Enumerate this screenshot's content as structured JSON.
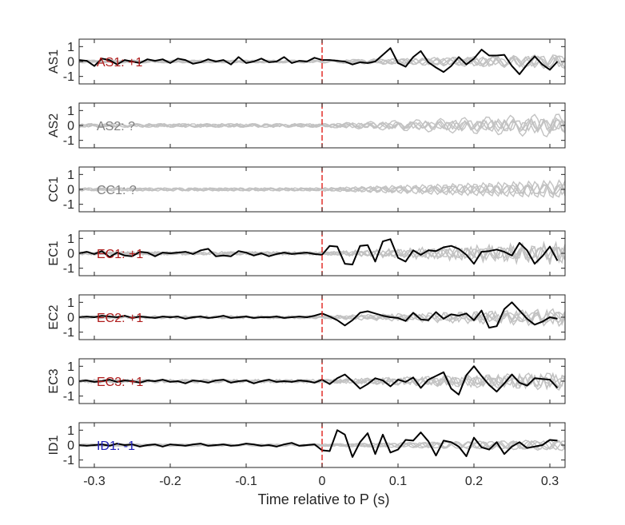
{
  "chart_data": {
    "type": "line",
    "xlabel": "Time relative to P (s)",
    "xlim": [
      -0.32,
      0.32
    ],
    "x_ticks": [
      -0.3,
      -0.2,
      -0.1,
      0,
      0.1,
      0.2,
      0.3
    ],
    "x_tick_labels": [
      "-0.3",
      "-0.2",
      "-0.1",
      "0",
      "0.1",
      "0.2",
      "0.3"
    ],
    "ylim": [
      -1.5,
      1.5
    ],
    "y_ticks": [
      -1,
      0,
      1
    ],
    "y_tick_labels": [
      "-1",
      "0",
      "1"
    ],
    "marker_x": 0,
    "colors": {
      "highlight": "#000000",
      "background": "#c2c2c2",
      "marker": "#e0201b",
      "positive": "#b01c1c",
      "negative": "#1f1fb5",
      "unknown": "#7f7f7f"
    },
    "panels": [
      {
        "ylabel": "AS1",
        "label": "AS1: +1",
        "polarity": "positive",
        "x": [
          -0.32,
          -0.31,
          -0.3,
          -0.29,
          -0.28,
          -0.27,
          -0.26,
          -0.25,
          -0.24,
          -0.23,
          -0.22,
          -0.21,
          -0.2,
          -0.19,
          -0.18,
          -0.17,
          -0.16,
          -0.15,
          -0.14,
          -0.13,
          -0.12,
          -0.11,
          -0.1,
          -0.09,
          -0.08,
          -0.07,
          -0.06,
          -0.05,
          -0.04,
          -0.03,
          -0.02,
          -0.01,
          0,
          0.01,
          0.02,
          0.03,
          0.04,
          0.05,
          0.06,
          0.07,
          0.08,
          0.09,
          0.1,
          0.11,
          0.12,
          0.13,
          0.14,
          0.15,
          0.16,
          0.17,
          0.18,
          0.19,
          0.2,
          0.21,
          0.22,
          0.23,
          0.24,
          0.25,
          0.26,
          0.27,
          0.28,
          0.29,
          0.3,
          0.31
        ],
        "y": [
          0.1,
          0.05,
          -0.3,
          0.2,
          0.1,
          -0.2,
          0.1,
          0.0,
          -0.1,
          0.15,
          0.05,
          0.15,
          -0.1,
          0.2,
          0.1,
          -0.15,
          -0.05,
          0.15,
          0.0,
          0.1,
          -0.2,
          0.3,
          -0.1,
          0.0,
          0.2,
          -0.05,
          0.0,
          0.3,
          -0.1,
          0.05,
          0.0,
          0.25,
          0.1,
          0.1,
          0.05,
          0.0,
          -0.2,
          -0.05,
          -0.1,
          0.0,
          0.45,
          0.9,
          -0.1,
          -0.35,
          0.3,
          0.7,
          -0.05,
          -0.4,
          -0.7,
          -0.3,
          0.3,
          -0.2,
          0.2,
          0.8,
          0.4,
          0.4,
          0.45,
          -0.3,
          -0.85,
          -0.2,
          0.35,
          -0.2,
          -0.55,
          0.0
        ]
      },
      {
        "ylabel": "AS2",
        "label": "AS2: ?",
        "polarity": "unknown",
        "x": [],
        "y": []
      },
      {
        "ylabel": "CC1",
        "label": "CC1: ?",
        "polarity": "unknown",
        "x": [],
        "y": []
      },
      {
        "ylabel": "EC1",
        "label": "EC1: +1",
        "polarity": "positive",
        "x": [
          -0.32,
          -0.31,
          -0.3,
          -0.29,
          -0.28,
          -0.27,
          -0.26,
          -0.25,
          -0.24,
          -0.23,
          -0.22,
          -0.21,
          -0.2,
          -0.19,
          -0.18,
          -0.17,
          -0.16,
          -0.15,
          -0.14,
          -0.13,
          -0.12,
          -0.11,
          -0.1,
          -0.09,
          -0.08,
          -0.07,
          -0.06,
          -0.05,
          -0.04,
          -0.03,
          -0.02,
          -0.01,
          0,
          0.01,
          0.02,
          0.03,
          0.04,
          0.05,
          0.06,
          0.07,
          0.08,
          0.09,
          0.1,
          0.11,
          0.12,
          0.13,
          0.14,
          0.15,
          0.16,
          0.17,
          0.18,
          0.19,
          0.2,
          0.21,
          0.22,
          0.23,
          0.24,
          0.25,
          0.26,
          0.27,
          0.28,
          0.29,
          0.3,
          0.31
        ],
        "y": [
          0.0,
          0.1,
          -0.05,
          0.15,
          -0.25,
          0.05,
          -0.15,
          -0.2,
          0.1,
          0.05,
          -0.2,
          0.05,
          0.0,
          0.05,
          0.1,
          -0.05,
          0.2,
          0.3,
          -0.2,
          -0.15,
          -0.2,
          0.15,
          0.05,
          -0.15,
          0.0,
          -0.2,
          -0.05,
          0.05,
          -0.05,
          0.0,
          0.05,
          -0.05,
          -0.1,
          0.5,
          0.45,
          -0.7,
          -0.75,
          0.5,
          0.55,
          -0.55,
          0.8,
          0.95,
          -0.3,
          -0.55,
          0.2,
          -0.1,
          0.2,
          0.15,
          0.4,
          0.5,
          0.3,
          -0.1,
          -0.7,
          0.1,
          0.15,
          0.25,
          0.1,
          -0.15,
          0.7,
          0.2,
          -0.7,
          -0.2,
          0.45,
          -0.5
        ]
      },
      {
        "ylabel": "EC2",
        "label": "EC2: +1",
        "polarity": "positive",
        "x": [
          -0.32,
          -0.31,
          -0.3,
          -0.29,
          -0.28,
          -0.27,
          -0.26,
          -0.25,
          -0.24,
          -0.23,
          -0.22,
          -0.21,
          -0.2,
          -0.19,
          -0.18,
          -0.17,
          -0.16,
          -0.15,
          -0.14,
          -0.13,
          -0.12,
          -0.11,
          -0.1,
          -0.09,
          -0.08,
          -0.07,
          -0.06,
          -0.05,
          -0.04,
          -0.03,
          -0.02,
          -0.01,
          0,
          0.01,
          0.02,
          0.03,
          0.04,
          0.05,
          0.06,
          0.07,
          0.08,
          0.09,
          0.1,
          0.11,
          0.12,
          0.13,
          0.14,
          0.15,
          0.16,
          0.17,
          0.18,
          0.19,
          0.2,
          0.21,
          0.22,
          0.23,
          0.24,
          0.25,
          0.26,
          0.27,
          0.28,
          0.29,
          0.3,
          0.31
        ],
        "y": [
          0.0,
          0.05,
          0.0,
          0.1,
          0.05,
          0.0,
          0.1,
          -0.05,
          0.05,
          0.0,
          -0.05,
          0.05,
          0.0,
          0.05,
          -0.1,
          0.0,
          0.05,
          -0.05,
          0.0,
          0.1,
          -0.05,
          0.0,
          0.05,
          -0.05,
          0.0,
          0.0,
          0.05,
          -0.05,
          0.0,
          0.05,
          0.0,
          0.1,
          0.25,
          0.05,
          -0.2,
          -0.55,
          -0.2,
          0.3,
          0.4,
          0.25,
          0.1,
          0.0,
          -0.05,
          -0.25,
          0.3,
          -0.15,
          -0.2,
          0.35,
          -0.1,
          0.2,
          0.1,
          0.25,
          -0.2,
          0.45,
          -0.7,
          -0.6,
          0.55,
          1.0,
          0.45,
          -0.1,
          -0.5,
          -0.3,
          0.0,
          -0.1
        ]
      },
      {
        "ylabel": "EC3",
        "label": "EC3: +1",
        "polarity": "positive",
        "x": [
          -0.32,
          -0.31,
          -0.3,
          -0.29,
          -0.28,
          -0.27,
          -0.26,
          -0.25,
          -0.24,
          -0.23,
          -0.22,
          -0.21,
          -0.2,
          -0.19,
          -0.18,
          -0.17,
          -0.16,
          -0.15,
          -0.14,
          -0.13,
          -0.12,
          -0.11,
          -0.1,
          -0.09,
          -0.08,
          -0.07,
          -0.06,
          -0.05,
          -0.04,
          -0.03,
          -0.02,
          -0.01,
          0,
          0.01,
          0.02,
          0.03,
          0.04,
          0.05,
          0.06,
          0.07,
          0.08,
          0.09,
          0.1,
          0.11,
          0.12,
          0.13,
          0.14,
          0.15,
          0.16,
          0.17,
          0.18,
          0.19,
          0.2,
          0.21,
          0.22,
          0.23,
          0.24,
          0.25,
          0.26,
          0.27,
          0.28,
          0.29,
          0.3,
          0.31
        ],
        "y": [
          0.0,
          0.05,
          -0.05,
          0.0,
          0.1,
          -0.05,
          0.05,
          0.0,
          -0.1,
          0.05,
          0.0,
          0.1,
          -0.05,
          0.0,
          -0.15,
          0.05,
          0.0,
          -0.1,
          0.05,
          0.1,
          -0.1,
          0.0,
          0.05,
          -0.15,
          0.0,
          0.1,
          -0.05,
          0.0,
          -0.05,
          0.05,
          0.0,
          -0.1,
          0.1,
          -0.2,
          0.2,
          0.45,
          0.0,
          -0.5,
          -0.2,
          0.2,
          0.05,
          -0.35,
          0.1,
          -0.05,
          0.25,
          -0.45,
          0.1,
          0.35,
          0.6,
          -0.5,
          -0.9,
          0.4,
          1.0,
          0.35,
          -0.25,
          -0.7,
          -0.15,
          0.45,
          -0.1,
          -0.3,
          0.2,
          0.15,
          0.1,
          -0.45
        ]
      },
      {
        "ylabel": "ID1",
        "label": "ID1: -1",
        "polarity": "negative",
        "x": [
          -0.32,
          -0.31,
          -0.3,
          -0.29,
          -0.28,
          -0.27,
          -0.26,
          -0.25,
          -0.24,
          -0.23,
          -0.22,
          -0.21,
          -0.2,
          -0.19,
          -0.18,
          -0.17,
          -0.16,
          -0.15,
          -0.14,
          -0.13,
          -0.12,
          -0.11,
          -0.1,
          -0.09,
          -0.08,
          -0.07,
          -0.06,
          -0.05,
          -0.04,
          -0.03,
          -0.02,
          -0.01,
          0,
          0.01,
          0.02,
          0.03,
          0.04,
          0.05,
          0.06,
          0.07,
          0.08,
          0.09,
          0.1,
          0.11,
          0.12,
          0.13,
          0.14,
          0.15,
          0.16,
          0.17,
          0.18,
          0.19,
          0.2,
          0.21,
          0.22,
          0.23,
          0.24,
          0.25,
          0.26,
          0.27,
          0.28,
          0.29,
          0.3,
          0.31
        ],
        "y": [
          0.0,
          -0.05,
          0.0,
          0.05,
          -0.05,
          0.1,
          0.0,
          0.05,
          -0.1,
          0.0,
          0.05,
          -0.1,
          0.05,
          0.0,
          -0.05,
          0.05,
          0.1,
          -0.05,
          0.0,
          0.05,
          -0.05,
          0.0,
          0.1,
          0.05,
          -0.05,
          0.0,
          -0.1,
          0.05,
          0.15,
          -0.05,
          0.0,
          0.05,
          -0.35,
          -0.4,
          1.0,
          0.7,
          -0.8,
          0.2,
          0.8,
          -0.6,
          0.7,
          -0.5,
          -0.3,
          0.35,
          0.3,
          0.85,
          0.25,
          -0.7,
          0.3,
          0.2,
          -0.1,
          -0.75,
          0.5,
          -0.15,
          -0.3,
          0.2,
          -0.6,
          -0.1,
          0.2,
          -0.2,
          -0.1,
          0.0,
          0.35,
          0.3
        ]
      }
    ]
  }
}
